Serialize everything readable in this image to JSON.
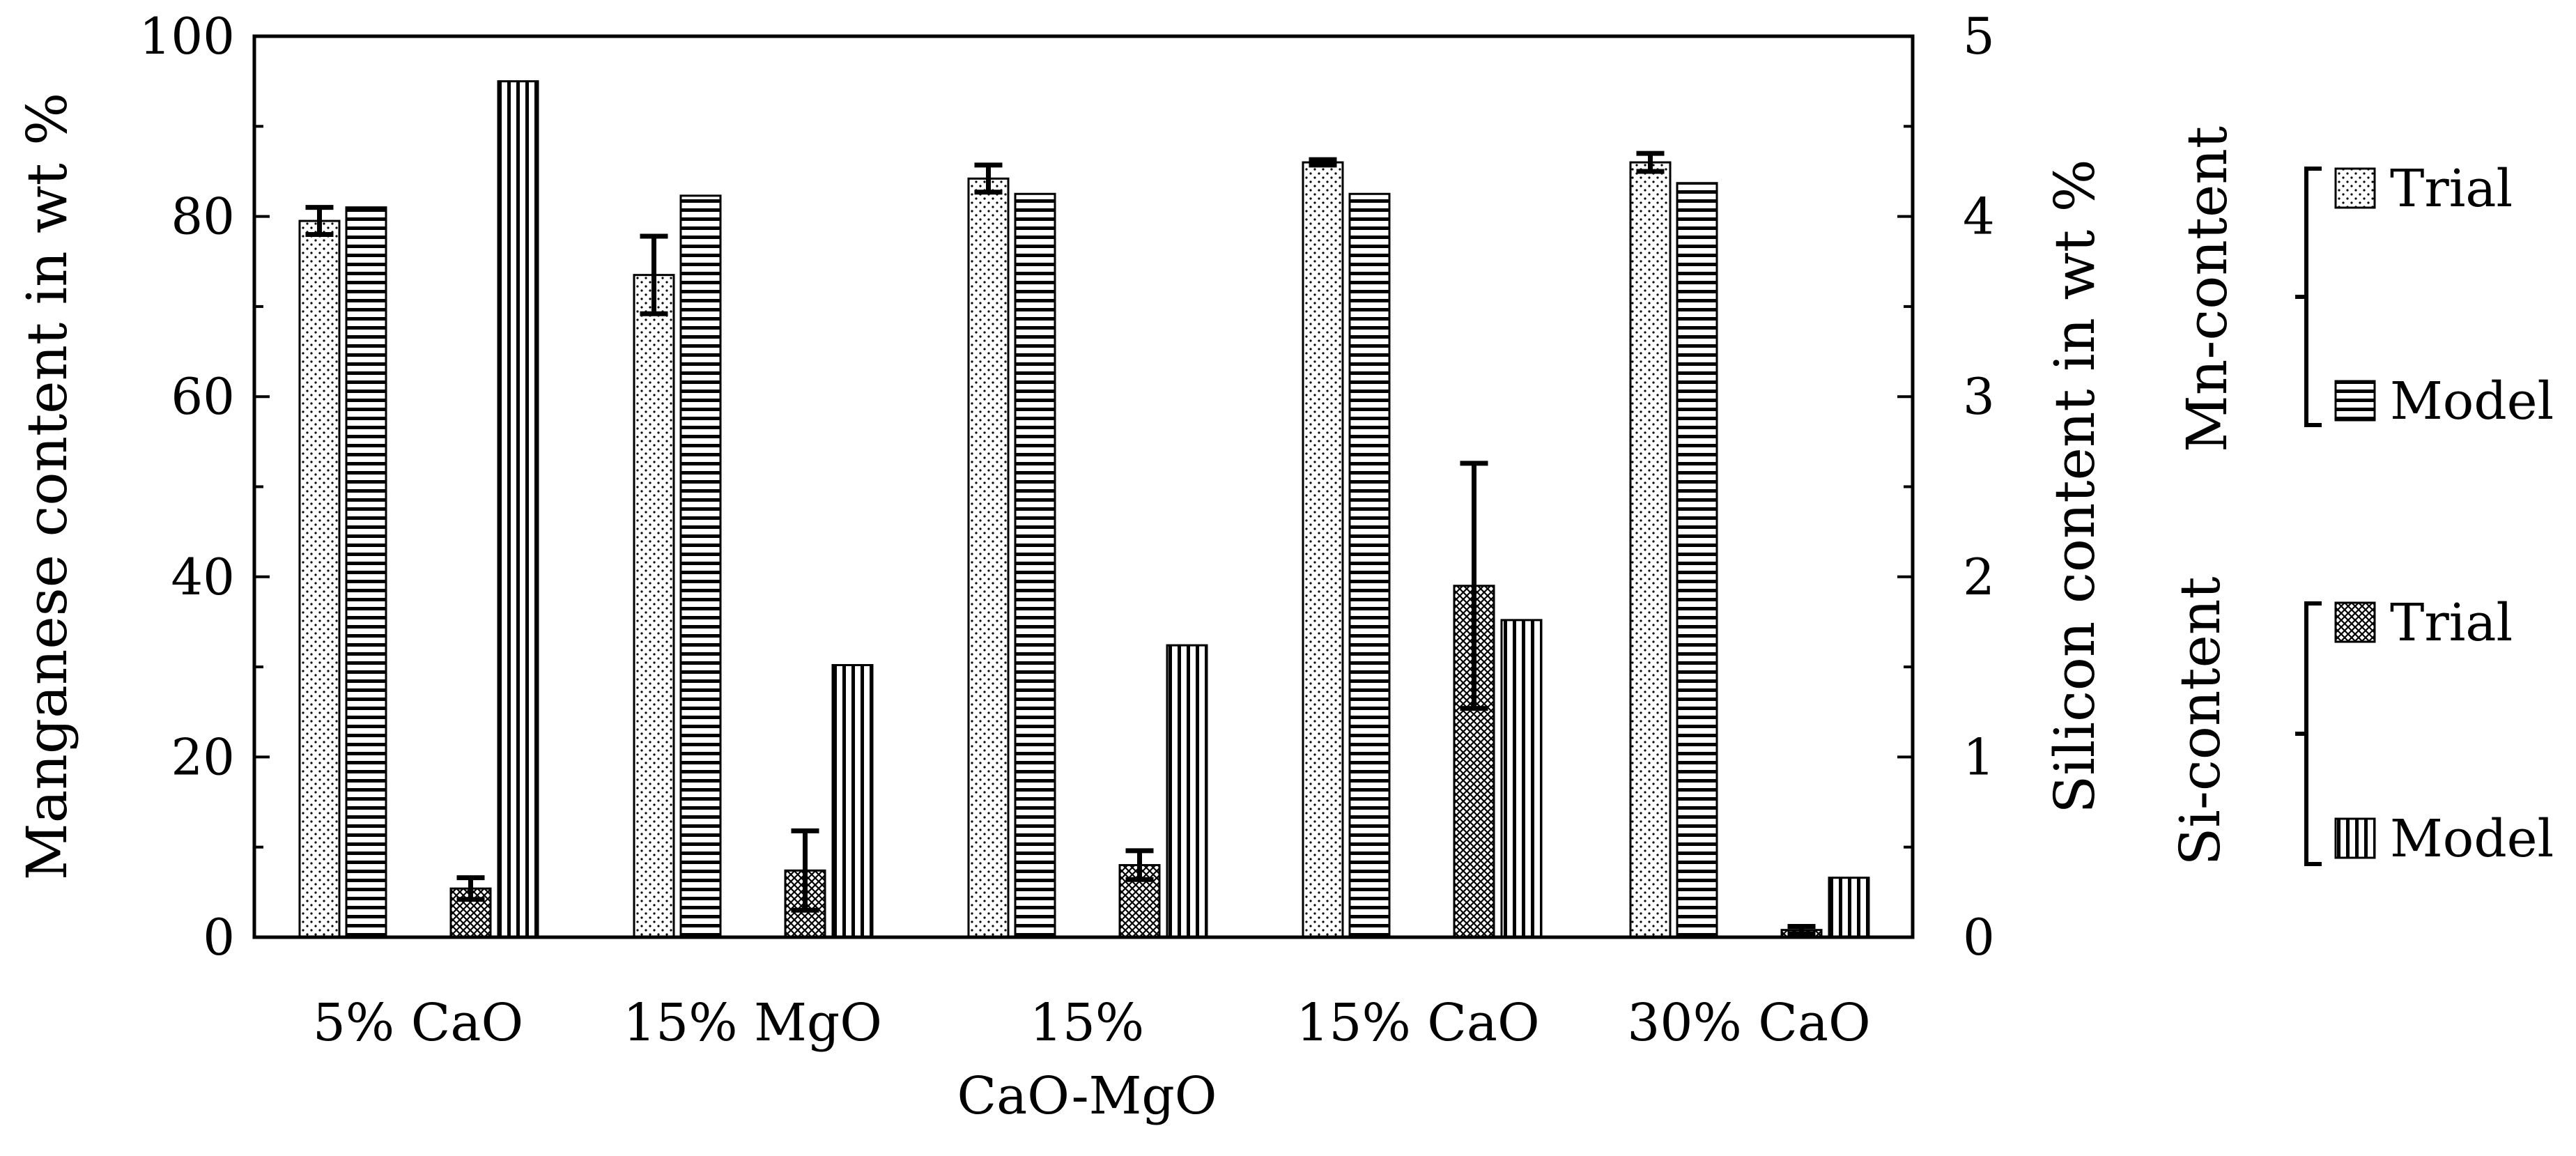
{
  "chart_data": {
    "type": "bar",
    "categories": [
      "5% CaO",
      "15% MgO",
      "15% CaO-MgO",
      "15% CaO",
      "30% CaO"
    ],
    "category_label_lines": [
      [
        "5% CaO"
      ],
      [
        "15% MgO"
      ],
      [
        "15%",
        "CaO-MgO"
      ],
      [
        "15% CaO"
      ],
      [
        "30% CaO"
      ]
    ],
    "y_left": {
      "label": "Manganese content in wt %",
      "min": 0,
      "max": 100,
      "ticks": [
        0,
        20,
        40,
        60,
        80,
        100
      ],
      "tick_labels": [
        "0",
        "20",
        "40",
        "60",
        "80",
        "100"
      ]
    },
    "y_right": {
      "label": "Silicon content in wt %",
      "min": 0,
      "max": 5,
      "ticks": [
        0,
        1,
        2,
        3,
        4,
        5
      ],
      "tick_labels": [
        "0",
        "1",
        "2",
        "3",
        "4",
        "5"
      ]
    },
    "series": [
      {
        "name": "Trial",
        "group": "Mn-content",
        "axis": "left",
        "pattern": "dots",
        "values": [
          79.5,
          73.5,
          84.2,
          86.0,
          86.0
        ],
        "error": [
          1.5,
          4.3,
          1.5,
          0.3,
          1.0
        ]
      },
      {
        "name": "Model",
        "group": "Mn-content",
        "axis": "left",
        "pattern": "hlines",
        "values": [
          81.0,
          82.3,
          82.5,
          82.5,
          83.7
        ],
        "error": null
      },
      {
        "name": "Trial",
        "group": "Si-content",
        "axis": "right",
        "pattern": "crosshatch",
        "values": [
          0.27,
          0.37,
          0.4,
          1.95,
          0.04
        ],
        "error": [
          0.06,
          0.22,
          0.08,
          0.68,
          0.02
        ]
      },
      {
        "name": "Model",
        "group": "Si-content",
        "axis": "right",
        "pattern": "vlines",
        "values": [
          4.75,
          1.51,
          1.62,
          1.76,
          0.33
        ],
        "error": null
      }
    ],
    "legend": {
      "placement": "right",
      "groups": [
        {
          "title": "Mn-content",
          "entries": [
            "Trial",
            "Model"
          ]
        },
        {
          "title": "Si-content",
          "entries": [
            "Trial",
            "Model"
          ]
        }
      ]
    },
    "grid": false
  }
}
